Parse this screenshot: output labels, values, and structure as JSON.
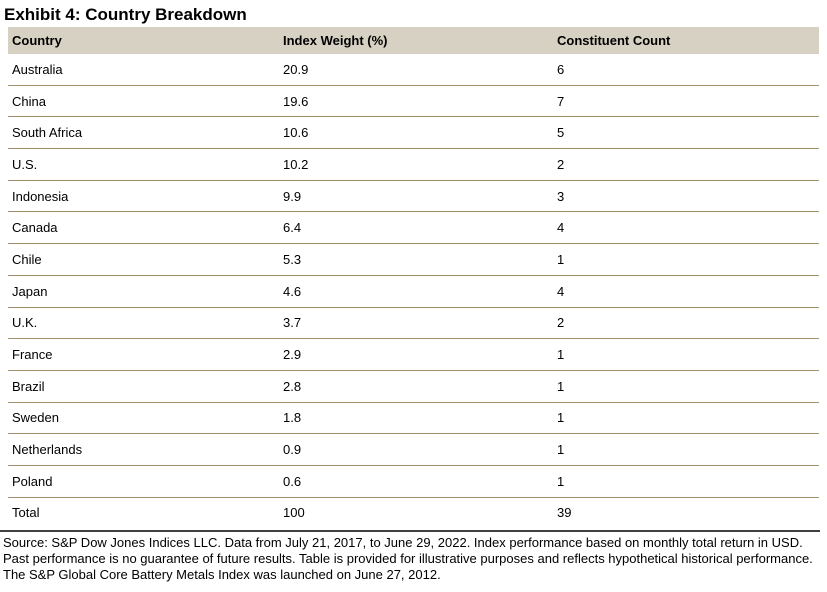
{
  "title": "Exhibit 4: Country Breakdown",
  "table": {
    "columns": [
      "Country",
      "Index Weight (%)",
      "Constituent Count"
    ],
    "rows": [
      [
        "Australia",
        "20.9",
        "6"
      ],
      [
        "China",
        "19.6",
        "7"
      ],
      [
        "South Africa",
        "10.6",
        "5"
      ],
      [
        "U.S.",
        "10.2",
        "2"
      ],
      [
        "Indonesia",
        "9.9",
        "3"
      ],
      [
        "Canada",
        "6.4",
        "4"
      ],
      [
        "Chile",
        "5.3",
        "1"
      ],
      [
        "Japan",
        "4.6",
        "4"
      ],
      [
        "U.K.",
        "3.7",
        "2"
      ],
      [
        "France",
        "2.9",
        "1"
      ],
      [
        "Brazil",
        "2.8",
        "1"
      ],
      [
        "Sweden",
        "1.8",
        "1"
      ],
      [
        "Netherlands",
        "0.9",
        "1"
      ],
      [
        "Poland",
        "0.6",
        "1"
      ],
      [
        "Total",
        "100",
        "39"
      ]
    ]
  },
  "footnote": "Source: S&P Dow Jones Indices LLC. Data from July 21, 2017, to June 29, 2022. Index performance based on monthly total return in USD. Past performance is no guarantee of future results. Table is provided for illustrative purposes and reflects hypothetical historical performance. The S&P Global Core Battery Metals Index was launched on June 27, 2012.",
  "colors": {
    "header_bg": "#d6d1c3",
    "row_divider": "#a3906f",
    "footnote_divider": "#404040"
  }
}
